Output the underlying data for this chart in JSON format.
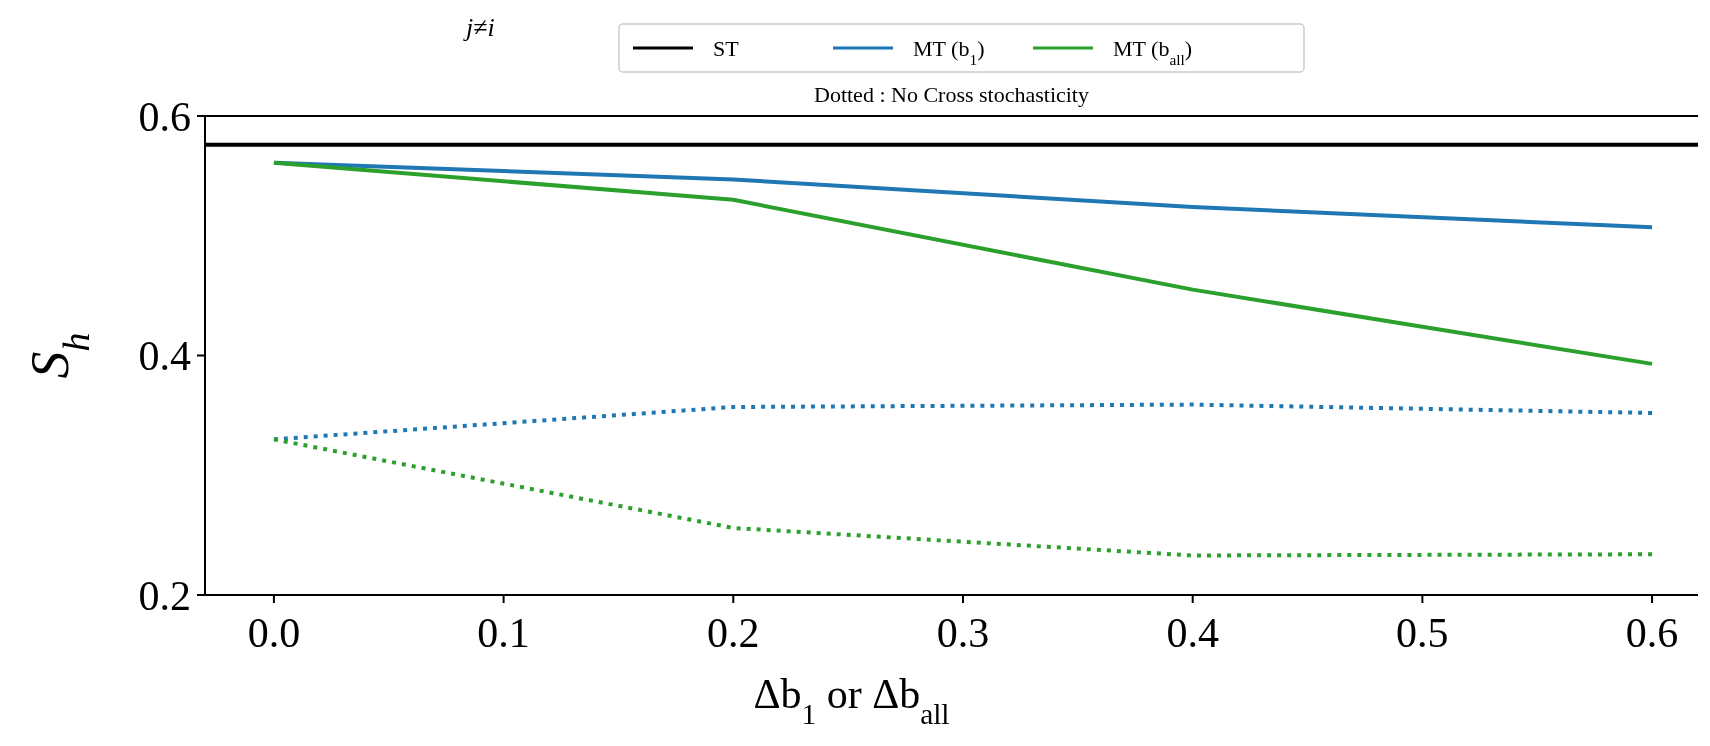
{
  "chart_data": {
    "type": "line",
    "xlabel": "Δb$_{1}$ or Δb$_{all}$",
    "ylabel": "S$_{h}$",
    "annotations": [
      "j≠i",
      "Dotted : No Cross stochasticity"
    ],
    "xlim": [
      -0.03,
      0.62
    ],
    "ylim": [
      0.2,
      0.6
    ],
    "xticks": [
      {
        "value": 0,
        "label": "0.0"
      },
      0.1,
      0.2,
      0.3,
      0.4,
      0.5,
      0.6
    ],
    "yticks": [
      0.2,
      0.4,
      0.6
    ],
    "grid": false,
    "legend": "top",
    "series": [
      {
        "name": "ST",
        "color": "#000000",
        "x": [
          -0.03,
          0.62
        ],
        "values": [
          0.576,
          0.576
        ],
        "line_style": "solid"
      },
      {
        "name": "MT (b$_{1}$)",
        "color": "#1f77b4",
        "x": [
          0,
          0.2,
          0.4,
          0.6
        ],
        "values": [
          0.561,
          0.547,
          0.524,
          0.507
        ],
        "line_style": "solid"
      },
      {
        "name": "MT (b$_{all}$)",
        "color": "#2ca02c",
        "x": [
          0,
          0.2,
          0.4,
          0.6
        ],
        "values": [
          0.561,
          0.53,
          0.455,
          0.393
        ],
        "line_style": "solid"
      },
      {
        "color": "#1f77b4",
        "x": [
          0,
          0.2,
          0.4,
          0.6
        ],
        "values": [
          0.33,
          0.357,
          0.359,
          0.352
        ],
        "line_style": "dotted"
      },
      {
        "color": "#2ca02c",
        "x": [
          0,
          0.2,
          0.4,
          0.6
        ],
        "values": [
          0.33,
          0.256,
          0.233,
          0.234
        ],
        "line_style": "dotted"
      }
    ]
  }
}
